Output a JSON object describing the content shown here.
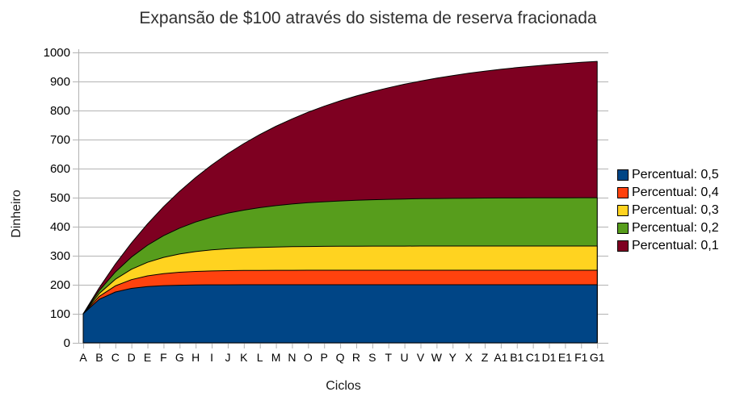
{
  "chart_data": {
    "type": "area",
    "stacked": false,
    "title": "Expansão de $100 através do sistema de reserva fracionada",
    "xlabel": "Ciclos",
    "ylabel": "Dinheiro",
    "ylim": [
      0,
      1000
    ],
    "ytick_interval": 100,
    "grid": "horizontal",
    "legend_position": "right",
    "categories": [
      "A",
      "B",
      "C",
      "D",
      "E",
      "F",
      "G",
      "H",
      "I",
      "J",
      "K",
      "L",
      "M",
      "N",
      "O",
      "P",
      "Q",
      "R",
      "S",
      "T",
      "U",
      "V",
      "W",
      "Y",
      "X",
      "Z",
      "A1",
      "B1",
      "C1",
      "D1",
      "E1",
      "F1",
      "G1"
    ],
    "series": [
      {
        "name": "Percentual: 0,5",
        "color": "#004586",
        "values": [
          100,
          150,
          175,
          187.5,
          193.8,
          196.9,
          198.4,
          199.2,
          199.6,
          199.8,
          199.9,
          200,
          200,
          200,
          200,
          200,
          200,
          200,
          200,
          200,
          200,
          200,
          200,
          200,
          200,
          200,
          200,
          200,
          200,
          200,
          200,
          200,
          200
        ]
      },
      {
        "name": "Percentual: 0,4",
        "color": "#FF420E",
        "values": [
          100,
          160,
          196,
          217.6,
          230.6,
          238.3,
          243,
          245.8,
          247.5,
          248.5,
          249.1,
          249.5,
          249.7,
          249.8,
          249.9,
          249.9,
          250,
          250,
          250,
          250,
          250,
          250,
          250,
          250,
          250,
          250,
          250,
          250,
          250,
          250,
          250,
          250,
          250
        ]
      },
      {
        "name": "Percentual: 0,3",
        "color": "#FFD320",
        "values": [
          100,
          170,
          219,
          253.3,
          277.3,
          294.1,
          305.9,
          314.1,
          319.9,
          323.9,
          326.7,
          328.7,
          330.1,
          331.1,
          331.8,
          332.2,
          332.6,
          332.8,
          333,
          333.1,
          333.1,
          333.2,
          333.2,
          333.3,
          333.3,
          333.3,
          333.3,
          333.3,
          333.3,
          333.3,
          333.3,
          333.3,
          333.3
        ]
      },
      {
        "name": "Percentual: 0,2",
        "color": "#579D1C",
        "values": [
          100,
          180,
          244,
          295.2,
          336.2,
          368.9,
          395.1,
          416.1,
          432.9,
          446.3,
          457,
          465.6,
          472.5,
          478,
          482.4,
          485.9,
          488.7,
          491,
          492.8,
          494.2,
          495.4,
          496.3,
          497,
          497.6,
          498.1,
          498.5,
          498.8,
          499,
          499.2,
          499.4,
          499.5,
          499.6,
          499.7
        ]
      },
      {
        "name": "Percentual: 0,1",
        "color": "#7E0021",
        "values": [
          100,
          190,
          271,
          343.9,
          409.5,
          468.6,
          521.7,
          569.5,
          612.6,
          651.3,
          686.2,
          717.6,
          745.8,
          771.2,
          794.1,
          814.7,
          833.2,
          849.9,
          864.9,
          878.4,
          890.6,
          901.5,
          911.4,
          920.2,
          928.2,
          935.4,
          941.9,
          947.7,
          952.9,
          957.6,
          961.8,
          965.7,
          969.1
        ]
      }
    ],
    "colors": {
      "background": "#FFFFFF",
      "grid": "#B3B3B3",
      "axis": "#B3B3B3",
      "tick_text": "#000000",
      "title_text": "#303030",
      "area_border": "#000000"
    }
  }
}
